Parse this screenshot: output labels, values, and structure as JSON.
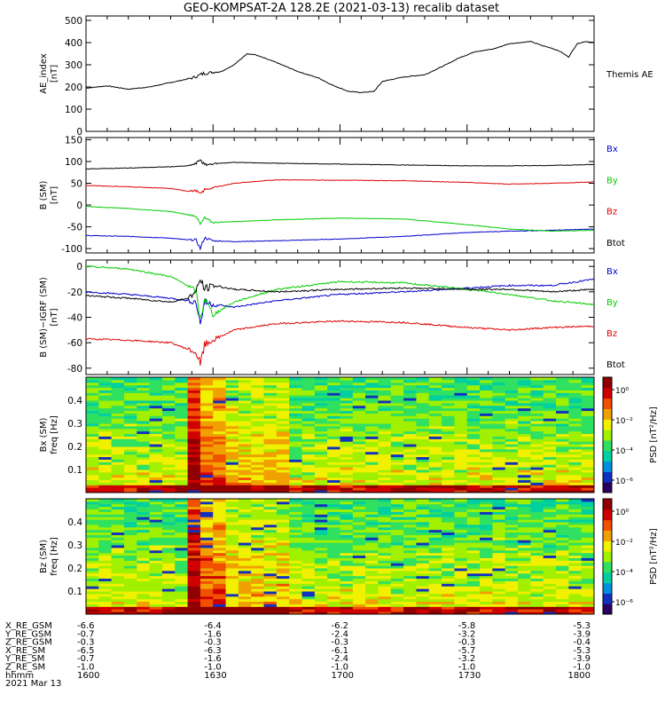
{
  "chart_data": {
    "type": "line",
    "title": "GEO-KOMPSAT-2A 128.2E (2021-03-13) recalib dataset",
    "x_ticks": [
      "1600",
      "1630",
      "1700",
      "1730",
      "1800"
    ],
    "xlim": [
      "16:00",
      "18:00"
    ],
    "panels": [
      {
        "id": "ae",
        "ylabel": "AE_index",
        "yunit": "[nT]",
        "ylim": [
          0,
          520
        ],
        "yticks": [
          "0",
          "100",
          "200",
          "300",
          "400",
          "500"
        ],
        "series": [
          {
            "name": "Themis AE",
            "color": "#000000",
            "x": [
              0,
              5,
              10,
              15,
              20,
              25,
              28,
              32,
              35,
              38,
              40,
              45,
              50,
              55,
              58,
              62,
              65,
              68,
              70,
              75,
              80,
              85,
              88,
              92,
              96,
              100,
              105,
              108,
              110,
              112,
              114,
              116,
              118,
              120
            ],
            "y": [
              195,
              205,
              190,
              200,
              220,
              240,
              262,
              270,
              300,
              350,
              345,
              310,
              270,
              240,
              210,
              180,
              175,
              180,
              225,
              245,
              255,
              300,
              330,
              360,
              370,
              395,
              405,
              385,
              375,
              360,
              335,
              395,
              405,
              400
            ]
          }
        ]
      },
      {
        "id": "b",
        "ylabel": "B (SM)",
        "yunit": "[nT]",
        "ylim": [
          -110,
          155
        ],
        "yticks": [
          "-100",
          "-50",
          "0",
          "50",
          "100",
          "150"
        ],
        "series": [
          {
            "name": "Bx",
            "color": "#0000cc",
            "x": [
              0,
              10,
              20,
              24,
              26,
              27,
              28,
              30,
              35,
              45,
              60,
              75,
              90,
              100,
              110,
              120
            ],
            "y": [
              -70,
              -72,
              -76,
              -80,
              -80,
              -100,
              -75,
              -82,
              -84,
              -82,
              -78,
              -72,
              -63,
              -60,
              -58,
              -55
            ]
          },
          {
            "name": "By",
            "color": "#00cc00",
            "x": [
              0,
              10,
              20,
              24,
              26,
              27,
              28,
              30,
              35,
              45,
              60,
              75,
              90,
              100,
              110,
              120
            ],
            "y": [
              -3,
              -8,
              -15,
              -22,
              -25,
              -45,
              -30,
              -40,
              -38,
              -34,
              -30,
              -32,
              -45,
              -55,
              -60,
              -58
            ]
          },
          {
            "name": "Bz",
            "color": "#dd0000",
            "x": [
              0,
              10,
              20,
              24,
              26,
              27,
              28,
              30,
              35,
              45,
              60,
              75,
              90,
              100,
              110,
              120
            ],
            "y": [
              45,
              42,
              38,
              32,
              33,
              25,
              35,
              40,
              50,
              58,
              57,
              56,
              52,
              48,
              50,
              53
            ]
          },
          {
            "name": "Btot",
            "color": "#000000",
            "x": [
              0,
              10,
              20,
              24,
              26,
              27,
              28,
              30,
              35,
              45,
              60,
              75,
              90,
              100,
              110,
              120
            ],
            "y": [
              83,
              85,
              88,
              90,
              95,
              105,
              92,
              95,
              98,
              96,
              94,
              92,
              90,
              90,
              91,
              93
            ]
          }
        ]
      },
      {
        "id": "db",
        "ylabel": "B (SM)−IGRF (SM)",
        "yunit": "[nT]",
        "ylim": [
          -85,
          5
        ],
        "yticks": [
          "-80",
          "-60",
          "-40",
          "-20",
          "0"
        ],
        "series": [
          {
            "name": "Bx",
            "color": "#0000cc",
            "x": [
              0,
              10,
              20,
              24,
              26,
              27,
              28,
              30,
              35,
              45,
              60,
              75,
              90,
              100,
              110,
              120
            ],
            "y": [
              -20,
              -22,
              -25,
              -27,
              -28,
              -45,
              -28,
              -30,
              -32,
              -27,
              -22,
              -20,
              -17,
              -15,
              -15,
              -10
            ]
          },
          {
            "name": "By",
            "color": "#00cc00",
            "x": [
              0,
              10,
              20,
              24,
              26,
              27,
              28,
              30,
              35,
              45,
              60,
              75,
              90,
              100,
              110,
              120
            ],
            "y": [
              0,
              -2,
              -8,
              -15,
              -20,
              -42,
              -25,
              -38,
              -28,
              -18,
              -12,
              -13,
              -18,
              -22,
              -27,
              -30
            ]
          },
          {
            "name": "Bz",
            "color": "#dd0000",
            "x": [
              0,
              10,
              20,
              24,
              26,
              27,
              28,
              30,
              35,
              45,
              60,
              75,
              90,
              100,
              110,
              120
            ],
            "y": [
              -57,
              -58,
              -60,
              -65,
              -68,
              -77,
              -62,
              -58,
              -50,
              -45,
              -43,
              -44,
              -48,
              -50,
              -48,
              -47
            ]
          },
          {
            "name": "Btot",
            "color": "#000000",
            "x": [
              0,
              10,
              20,
              24,
              26,
              27,
              28,
              30,
              35,
              45,
              60,
              75,
              90,
              100,
              110,
              120
            ],
            "y": [
              -23,
              -25,
              -28,
              -25,
              -20,
              -10,
              -18,
              -15,
              -18,
              -20,
              -18,
              -17,
              -18,
              -18,
              -20,
              -18
            ]
          }
        ]
      },
      {
        "id": "specx",
        "type": "heatmap",
        "ylabel": "Bx (SM)",
        "yunit": "freq [Hz]",
        "ylim": [
          0,
          0.5
        ],
        "yticks": [
          "0.1",
          "0.2",
          "0.3",
          "0.4"
        ],
        "colorbar": {
          "label": "PSD [nT²/Hz]",
          "ticks": [
            "10⁰",
            "10⁻²",
            "10⁻⁴",
            "10⁻⁶"
          ]
        }
      },
      {
        "id": "specz",
        "type": "heatmap",
        "ylabel": "Bz (SM)",
        "yunit": "freq [Hz]",
        "ylim": [
          0,
          0.5
        ],
        "yticks": [
          "0.1",
          "0.2",
          "0.3",
          "0.4"
        ],
        "colorbar": {
          "label": "PSD [nT²/Hz]",
          "ticks": [
            "10⁰",
            "10⁻²",
            "10⁻⁴",
            "10⁻⁶"
          ]
        }
      }
    ],
    "legend_right": {
      "ae": [
        "Themis AE"
      ],
      "b": [
        "Bx",
        "By",
        "Bz",
        "Btot"
      ],
      "db": [
        "Bx",
        "By",
        "Bz",
        "Btot"
      ]
    }
  },
  "ephemeris": {
    "rows": [
      {
        "label": "X_RE_GSM",
        "values": [
          "-6.6",
          "-6.4",
          "-6.2",
          "-5.8",
          "-5.3"
        ]
      },
      {
        "label": "Y_RE_GSM",
        "values": [
          "-0.7",
          "-1.6",
          "-2.4",
          "-3.2",
          "-3.9"
        ]
      },
      {
        "label": "Z_RE_GSM",
        "values": [
          "-0.3",
          "-0.3",
          "-0.3",
          "-0.3",
          "-0.4"
        ]
      },
      {
        "label": "X_RE_SM",
        "values": [
          "-6.5",
          "-6.3",
          "-6.1",
          "-5.7",
          "-5.3"
        ]
      },
      {
        "label": "Y_RE_SM",
        "values": [
          "-0.7",
          "-1.6",
          "-2.4",
          "-3.2",
          "-3.9"
        ]
      },
      {
        "label": "Z_RE_SM",
        "values": [
          "-1.0",
          "-1.0",
          "-1.0",
          "-1.0",
          "-1.0"
        ]
      },
      {
        "label": "hhmm",
        "values": [
          "1600",
          "1630",
          "1700",
          "1730",
          "1800"
        ]
      }
    ],
    "date": "2021 Mar 13"
  }
}
